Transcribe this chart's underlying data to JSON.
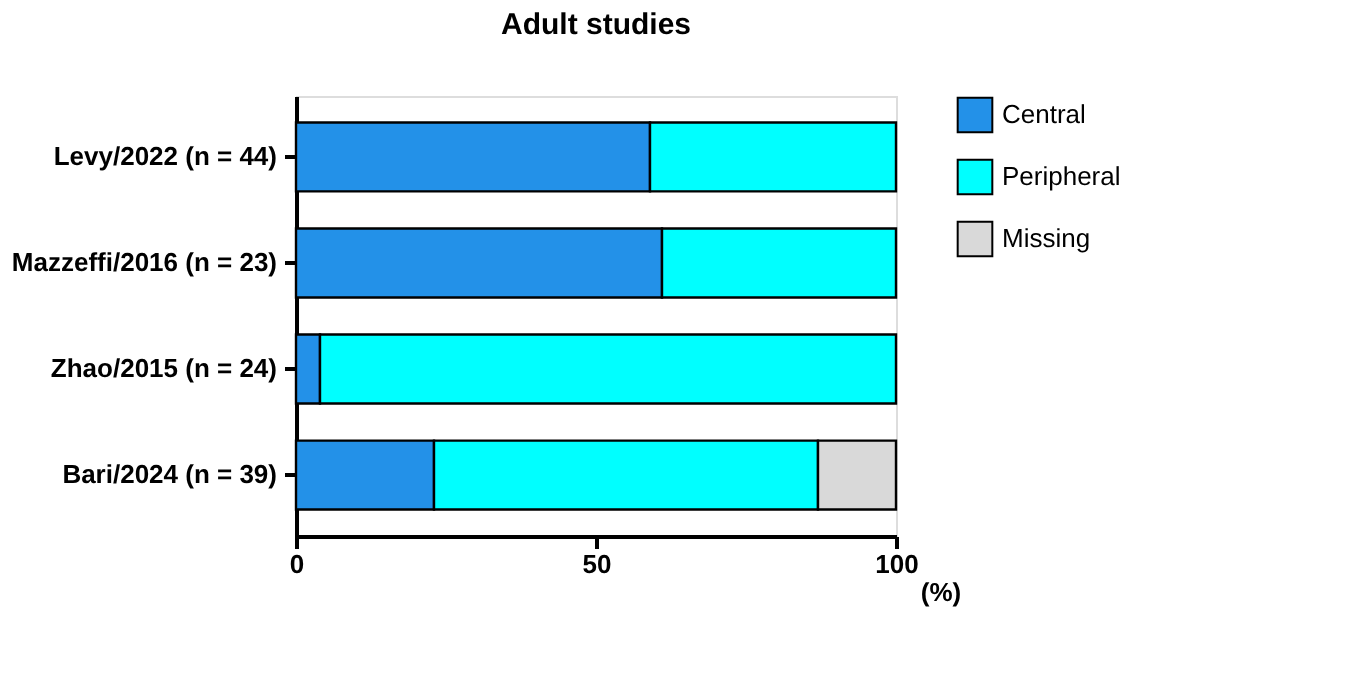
{
  "chart_data": {
    "type": "bar",
    "title": "Adult studies",
    "orientation": "horizontal",
    "stacked": true,
    "categories": [
      "Levy/2022 (n = 44)",
      "Mazzeffi/2016 (n = 23)",
      "Zhao/2015 (n = 24)",
      "Bari/2024 (n = 39)"
    ],
    "series": [
      {
        "name": "Central",
        "color": "#2391e8",
        "values": [
          59,
          61,
          4,
          23
        ]
      },
      {
        "name": "Peripheral",
        "color": "#00ffff",
        "values": [
          41,
          39,
          96,
          64
        ]
      },
      {
        "name": "Missing",
        "color": "#d9d9d9",
        "values": [
          null,
          null,
          null,
          13
        ]
      }
    ],
    "xlabel": "(%)",
    "xlim": [
      0,
      100
    ],
    "xticks": [
      0,
      50,
      100
    ],
    "grid": false,
    "legend": "top right"
  }
}
